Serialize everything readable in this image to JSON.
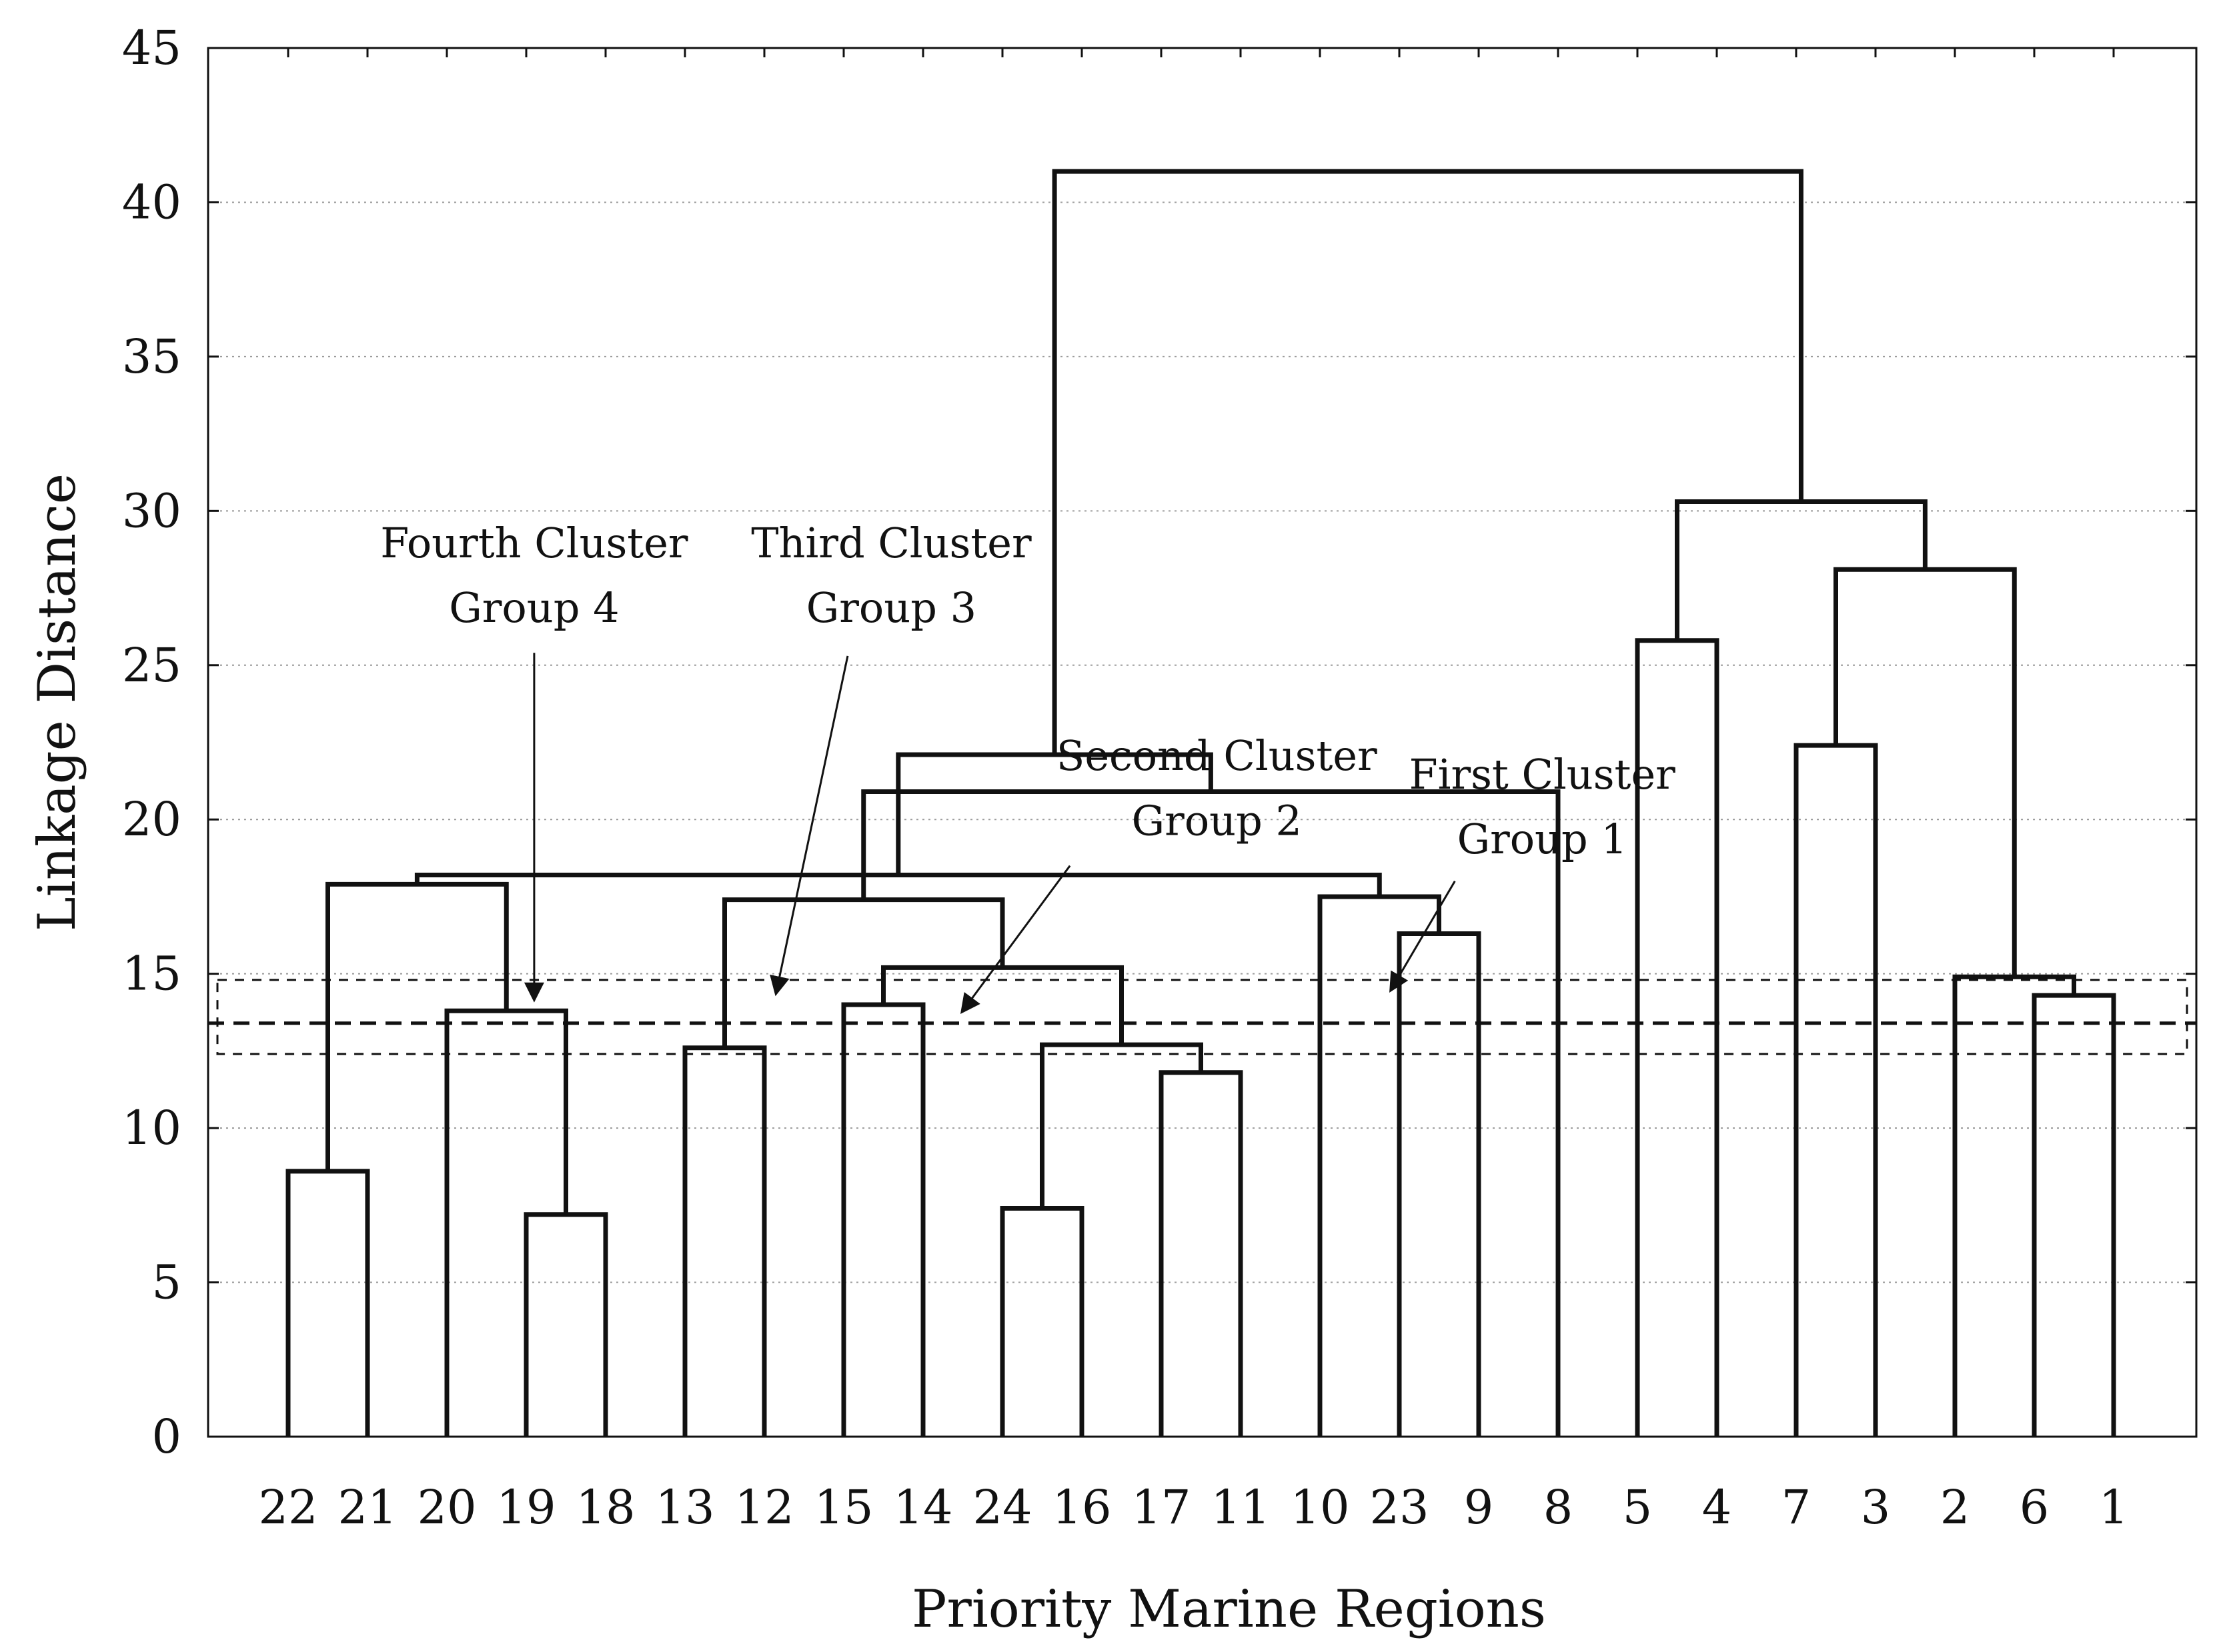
{
  "chart_data": {
    "type": "dendrogram",
    "title": "",
    "xlabel": "Priority Marine Regions",
    "ylabel": "Linkage Distance",
    "ylim": [
      0,
      45
    ],
    "yticks": [
      0,
      5,
      10,
      15,
      20,
      25,
      30,
      35,
      40,
      45
    ],
    "grid": true,
    "leaves": [
      "22",
      "21",
      "20",
      "19",
      "18",
      "13",
      "12",
      "15",
      "14",
      "24",
      "16",
      "17",
      "11",
      "10",
      "23",
      "9",
      "8",
      "5",
      "4",
      "7",
      "3",
      "2",
      "6",
      "1"
    ],
    "merges": [
      {
        "a": 9,
        "b": 10,
        "height": 7.4
      },
      {
        "a": 3,
        "b": 4,
        "height": 7.2
      },
      {
        "a": 0,
        "b": 1,
        "height": 8.6
      },
      {
        "a": 11,
        "b": 12,
        "height": 11.8
      },
      {
        "a": 5,
        "b": 6,
        "height": 12.6
      },
      {
        "a": 24,
        "b": 27,
        "height": 12.7
      },
      {
        "a": 2,
        "b": 25,
        "height": 13.8
      },
      {
        "a": 7,
        "b": 8,
        "height": 14.0
      },
      {
        "a": 22,
        "b": 23,
        "height": 14.3
      },
      {
        "a": 21,
        "b": 32,
        "height": 14.9
      },
      {
        "a": 31,
        "b": 29,
        "height": 15.2
      },
      {
        "a": 15,
        "b": 14,
        "height": 16.3
      },
      {
        "a": 28,
        "b": 34,
        "height": 17.4
      },
      {
        "a": 35,
        "b": 13,
        "height": 17.5
      },
      {
        "a": 26,
        "b": 30,
        "height": 17.9
      },
      {
        "a": 38,
        "b": 37,
        "height": 18.2
      },
      {
        "a": 36,
        "b": 16,
        "height": 20.9
      },
      {
        "a": 19,
        "b": 20,
        "height": 22.4
      },
      {
        "a": 39,
        "b": 40,
        "height": 22.1
      },
      {
        "a": 17,
        "b": 18,
        "height": 25.8
      },
      {
        "a": 41,
        "b": 33,
        "height": 28.1
      },
      {
        "a": 43,
        "b": 44,
        "height": 30.3
      },
      {
        "a": 42,
        "b": 45,
        "height": 41.0
      }
    ],
    "cut_line": 13.4,
    "cut_box": [
      12.4,
      14.8
    ],
    "annotations": [
      {
        "name": "fourth-cluster",
        "line1": "Fourth Cluster",
        "line2": "Group 4",
        "text_x": 4.1,
        "text_y1": 28.5,
        "text_y2": 26.4,
        "arrow_from": [
          4.1,
          25.4
        ],
        "arrow_to": [
          4.1,
          14.2
        ]
      },
      {
        "name": "third-cluster",
        "line1": "Third Cluster",
        "line2": "Group 3",
        "text_x": 8.6,
        "text_y1": 28.5,
        "text_y2": 26.4,
        "arrow_from": [
          8.05,
          25.3
        ],
        "arrow_to": [
          7.15,
          14.4
        ]
      },
      {
        "name": "second-cluster",
        "line1": "Second Cluster",
        "line2": "Group 2",
        "text_x": 12.7,
        "text_y1": 21.6,
        "text_y2": 19.5,
        "arrow_from": [
          10.85,
          18.5
        ],
        "arrow_to": [
          9.5,
          13.8
        ]
      },
      {
        "name": "first-cluster",
        "line1": "First Cluster",
        "line2": "Group 1",
        "text_x": 16.8,
        "text_y1": 21.0,
        "text_y2": 18.9,
        "arrow_from": [
          15.7,
          18.0
        ],
        "arrow_to": [
          14.9,
          14.5
        ]
      }
    ]
  }
}
